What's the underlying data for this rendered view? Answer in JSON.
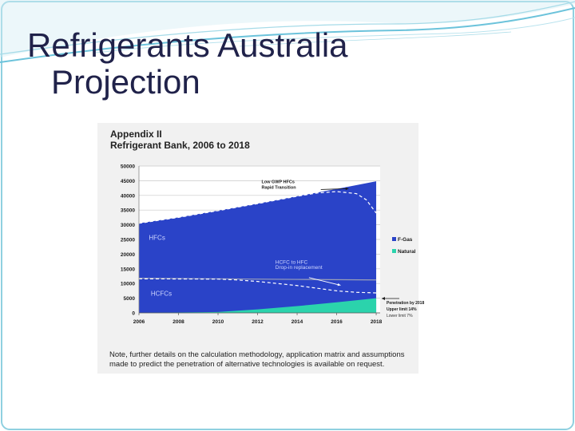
{
  "slide": {
    "title_line1": "Refrigerants Australia",
    "title_line2": "Projection",
    "colors": {
      "title": "#20224a",
      "border": "#8fd0e0",
      "swoosh": "#6cc3db"
    }
  },
  "figure": {
    "title_line1": "Appendix II",
    "title_line2": "Refrigerant Bank, 2006 to 2018",
    "note_line1": "Note, further details on the calculation methodology, application matrix and assumptions",
    "note_line2": "made to predict the penetration of alternative technologies is available on request."
  },
  "chart_data": {
    "type": "area",
    "x": [
      2006,
      2008,
      2010,
      2012,
      2014,
      2016,
      2018
    ],
    "xlim": [
      2006,
      2018.2
    ],
    "ylim": [
      0,
      50000
    ],
    "y_ticks": [
      0,
      5000,
      10000,
      15000,
      20000,
      25000,
      30000,
      35000,
      40000,
      45000,
      50000
    ],
    "y_tick_labels": [
      "0",
      "5000",
      "10000",
      "15000",
      "20000",
      "25000",
      "30000",
      "35000",
      "40000",
      "45000",
      "50000"
    ],
    "x_tick_labels": [
      "2006",
      "2008",
      "2010",
      "2012",
      "2014",
      "2016",
      "2018"
    ],
    "series": [
      {
        "name": "F-Gas",
        "color": "#2a43c8",
        "x": [
          2006,
          2008,
          2010,
          2012,
          2014,
          2016,
          2018
        ],
        "values": [
          30500,
          32500,
          34800,
          37200,
          39700,
          42200,
          44800
        ]
      },
      {
        "name": "Natural",
        "color": "#2bd3ac",
        "x": [
          2006,
          2010,
          2012,
          2014,
          2016,
          2018
        ],
        "values": [
          0,
          300,
          1200,
          2300,
          3600,
          5000
        ]
      }
    ],
    "lines": [
      {
        "style": "dashed",
        "color": "#ffffff",
        "x": [
          2006,
          2008,
          2010,
          2012,
          2014,
          2015,
          2016,
          2017,
          2017.5,
          2018
        ],
        "values": [
          30500,
          32500,
          34800,
          37200,
          39700,
          40800,
          41300,
          40600,
          38500,
          34000
        ]
      },
      {
        "style": "solid",
        "color": "#9aa0b8",
        "x": [
          2006,
          2010,
          2014,
          2018
        ],
        "values": [
          11800,
          11600,
          11400,
          11200
        ]
      },
      {
        "style": "dashed",
        "color": "#ffffff",
        "x": [
          2006,
          2010,
          2011,
          2012,
          2013,
          2014,
          2015,
          2016,
          2017,
          2018
        ],
        "values": [
          11600,
          11500,
          11200,
          10700,
          10000,
          9300,
          8400,
          7500,
          7000,
          6800
        ]
      }
    ],
    "labels": [
      {
        "text": "HFCs",
        "x": 2006.5,
        "y": 24900,
        "color": "#cfd6ff"
      },
      {
        "text": "HCFC to HFC",
        "x": 2012.9,
        "y": 16700,
        "color": "#cfd6ff",
        "size": 6.5
      },
      {
        "text": "Drop-in replacement",
        "x": 2012.9,
        "y": 14900,
        "color": "#cfd6ff",
        "size": 6.5
      },
      {
        "text": "HCFCs",
        "x": 2006.6,
        "y": 5900,
        "color": "#cfd6ff"
      },
      {
        "text": "Low GWP HFCs",
        "x": 2012.2,
        "y": 44100,
        "color": "#1a1a1a",
        "size": 5.5,
        "bold": true
      },
      {
        "text": "Rapid Transition",
        "x": 2012.2,
        "y": 42200,
        "color": "#1a1a1a",
        "size": 5.5,
        "bold": true
      }
    ],
    "arrows": [
      {
        "from": [
          2015.2,
          42000
        ],
        "to": [
          2016.6,
          42300
        ],
        "color": "#1a1a1a"
      },
      {
        "from": [
          2014.6,
          12000
        ],
        "to": [
          2016.2,
          9400
        ],
        "color": "#ffffff"
      }
    ],
    "legend": {
      "placement": "right"
    },
    "penetration": {
      "line1": "Penetration by 2018",
      "line2": "Upper limit 14%",
      "line3": "Lower limit 7%"
    }
  }
}
